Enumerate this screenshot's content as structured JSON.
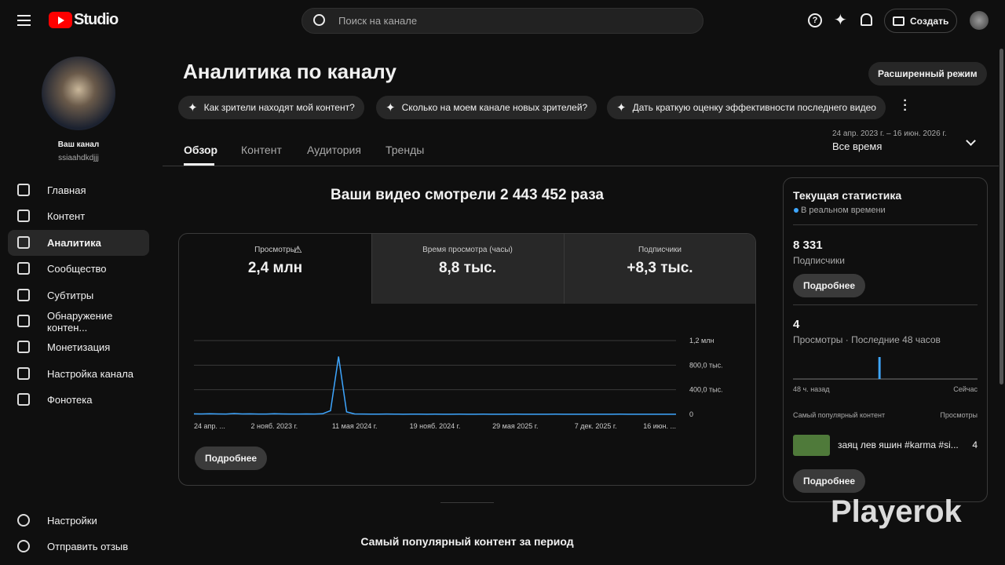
{
  "header": {
    "logo": "Studio",
    "search_placeholder": "Поиск на канале",
    "create": "Создать"
  },
  "sidebar": {
    "channel_title": "Ваш канал",
    "channel_handle": "ssiaahdkdjjj",
    "nav": [
      "Главная",
      "Контент",
      "Аналитика",
      "Сообщество",
      "Субтитры",
      "Обнаружение контен...",
      "Монетизация",
      "Настройка канала",
      "Фонотека"
    ],
    "bottom": [
      "Настройки",
      "Отправить отзыв"
    ]
  },
  "page": {
    "title": "Аналитика по каналу",
    "advanced": "Расширенный режим",
    "prompts": [
      "Как зрители находят мой контент?",
      "Сколько на моем канале новых зрителей?",
      "Дать краткую оценку эффективности последнего видео"
    ],
    "tabs": [
      "Обзор",
      "Контент",
      "Аудитория",
      "Тренды"
    ],
    "period_range": "24 апр. 2023 г. – 16 июн. 2026 г.",
    "period": "Все время",
    "headline": "Ваши видео смотрели 2 443 452 раза",
    "metrics": [
      {
        "label": "Просмотры",
        "value": "2,4 млн"
      },
      {
        "label": "Время просмотра (часы)",
        "value": "8,8 тыс."
      },
      {
        "label": "Подписчики",
        "value": "+8,3 тыс."
      }
    ],
    "more": "Подробнее",
    "section_title": "Самый популярный контент за период"
  },
  "chart_data": {
    "type": "line",
    "color": "#3ea6ff",
    "categories": [
      "24 апр. ...",
      null,
      null,
      null,
      null,
      null,
      null,
      null,
      null,
      null,
      "2 нояб. 2023 г.",
      null,
      null,
      null,
      null,
      null,
      null,
      null,
      null,
      null,
      "11 мая 2024 г.",
      null,
      null,
      null,
      null,
      null,
      null,
      null,
      null,
      null,
      "19 нояб. 2024 г.",
      null,
      null,
      null,
      null,
      null,
      null,
      null,
      null,
      null,
      "29 мая 2025 г.",
      null,
      null,
      null,
      null,
      null,
      null,
      null,
      null,
      null,
      "7 дек. 2025 г.",
      null,
      null,
      null,
      null,
      null,
      null,
      null,
      null,
      null,
      "16 июн. ..."
    ],
    "values": [
      8000,
      6000,
      9000,
      7000,
      5000,
      12000,
      6000,
      8000,
      5000,
      4000,
      9000,
      6000,
      5000,
      4000,
      7000,
      5000,
      9000,
      60000,
      940000,
      40000,
      6000,
      4000,
      3000,
      3000,
      4000,
      3000,
      2000,
      3000,
      3000,
      2000,
      3000,
      2000,
      2000,
      3000,
      2000,
      2000,
      3000,
      2000,
      2000,
      2000,
      3000,
      2000,
      2000,
      2000,
      2000,
      3000,
      2000,
      2000,
      2000,
      2000,
      2000,
      2000,
      2000,
      3000,
      2000,
      2000,
      2000,
      2000,
      2000,
      2000,
      2000
    ],
    "ylim": [
      0,
      1200000
    ],
    "yticks": [
      0,
      {
        "value": 400000,
        "label": "400,0 тыс."
      },
      {
        "value": 800000,
        "label": "800,0 тыс."
      },
      {
        "value": 1200000,
        "label": "1,2 млн"
      }
    ],
    "grid": true
  },
  "realtime": {
    "title": "Текущая статистика",
    "live": "В реальном времени",
    "subscribers": "8 331",
    "subscribers_label": "Подписчики",
    "more": "Подробнее",
    "views": "4",
    "views_label": "Просмотры · Последние 48 часов",
    "hourly": [
      0,
      0,
      0,
      0,
      0,
      0,
      0,
      0,
      0,
      0,
      0,
      0,
      0,
      0,
      0,
      0,
      0,
      0,
      0,
      0,
      0,
      0,
      4,
      0,
      0,
      0,
      0,
      0,
      0,
      0,
      0,
      0,
      0,
      0,
      0,
      0,
      0,
      0,
      0,
      0,
      0,
      0,
      0,
      0,
      0,
      0,
      0,
      0
    ],
    "start_label": "48 ч. назад",
    "end_label": "Сейчас",
    "top_title": "Самый популярный контент",
    "top_metric": "Просмотры",
    "top_item": "заяц лев яшин #karma #si...",
    "top_views": "4",
    "more2": "Подробнее"
  },
  "watermark": "Playerok"
}
